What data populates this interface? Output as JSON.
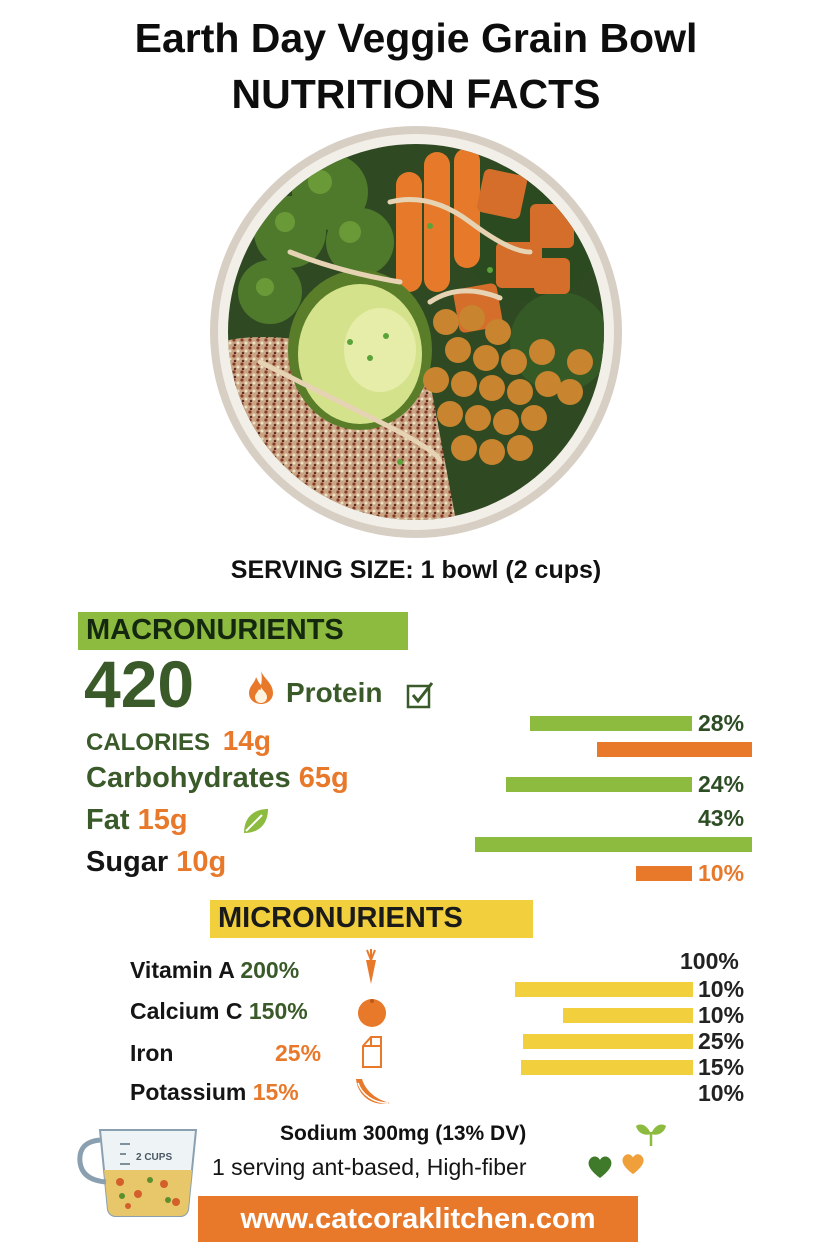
{
  "header": {
    "line1": "Earth Day Veggie Grain Bowl",
    "line2": "NUTRITION FACTS"
  },
  "serving": "SERVING SIZE: 1 bowl (2 cups)",
  "macros": {
    "heading": "MACRONURIENTS",
    "calories_value": "420",
    "protein_label": "Protein",
    "calories_label": "CALORIES",
    "protein_value": "14g",
    "carbs_label": "Carbohydrates",
    "carbs_value": "65g",
    "fat_label": "Fat",
    "fat_value": "15g",
    "sugar_label": "Sugar",
    "sugar_value": "10g",
    "pct": [
      "28%",
      "24%",
      "43%",
      "10%"
    ]
  },
  "micros": {
    "heading": "MICRONURIENTS",
    "items": [
      {
        "label": "Vitamin A",
        "value": "200%",
        "icon": "carrot-icon"
      },
      {
        "label": "Calcium C",
        "value": "150%",
        "icon": "orange-icon"
      },
      {
        "label": "Iron",
        "value": "25%",
        "icon": "milk-carton-icon"
      },
      {
        "label": "Potassium",
        "value": "15%",
        "icon": "banana-icon"
      }
    ],
    "pct": [
      "100%",
      "10%",
      "10%",
      "25%",
      "15%",
      "10%"
    ]
  },
  "footer": {
    "sodium": "Sodium 300mg (13% DV)",
    "note": "1 serving ant-based, High-fiber",
    "cup_label": "2 CUPS",
    "url": "www.catcoraklitchen.com"
  },
  "colors": {
    "green": "#8dbb3f",
    "orange": "#e8792b",
    "yellow": "#f2cf3d",
    "dark_green": "#3a5a2a"
  }
}
